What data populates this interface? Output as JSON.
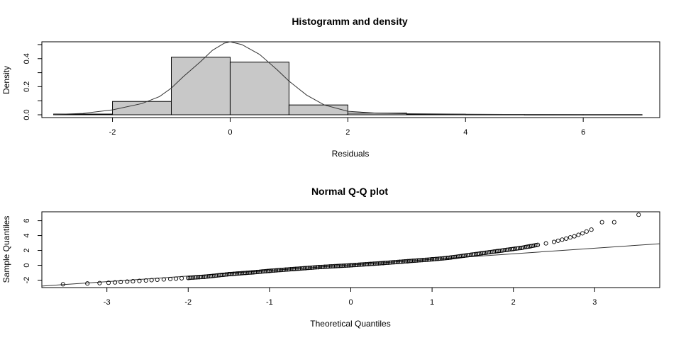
{
  "chart_data": [
    {
      "type": "bar",
      "subtype": "histogram with density curve",
      "title": "Histogramm and density",
      "xlabel": "Residuals",
      "ylabel": "Density",
      "xlim": [
        -3.2,
        7.3
      ],
      "ylim": [
        -0.02,
        0.52
      ],
      "x_ticks": [
        "-2",
        "0",
        "2",
        "4",
        "6"
      ],
      "y_ticks": [
        "0.0",
        "0.2",
        "0.4"
      ],
      "bins": [
        {
          "from": -3,
          "to": -2,
          "value": 0.005
        },
        {
          "from": -2,
          "to": -1,
          "value": 0.095
        },
        {
          "from": -1,
          "to": 0,
          "value": 0.41
        },
        {
          "from": 0,
          "to": 1,
          "value": 0.375
        },
        {
          "from": 1,
          "to": 2,
          "value": 0.07
        },
        {
          "from": 2,
          "to": 3,
          "value": 0.012
        },
        {
          "from": 3,
          "to": 4,
          "value": 0.004
        },
        {
          "from": 4,
          "to": 5,
          "value": 0.002
        },
        {
          "from": 5,
          "to": 6,
          "value": 0.001
        },
        {
          "from": 6,
          "to": 7,
          "value": 0.001
        }
      ],
      "density": {
        "x": [
          -3.0,
          -2.5,
          -2.0,
          -1.5,
          -1.2,
          -1.0,
          -0.8,
          -0.5,
          -0.3,
          -0.1,
          0.0,
          0.2,
          0.5,
          0.8,
          1.0,
          1.3,
          1.6,
          2.0,
          2.5,
          3.0,
          4.0,
          5.0,
          6.0,
          7.0
        ],
        "y": [
          0.002,
          0.01,
          0.035,
          0.08,
          0.13,
          0.19,
          0.27,
          0.38,
          0.46,
          0.51,
          0.52,
          0.5,
          0.43,
          0.32,
          0.24,
          0.14,
          0.07,
          0.025,
          0.012,
          0.008,
          0.004,
          0.002,
          0.001,
          0.001
        ]
      },
      "bar_fill": "#c8c8c8",
      "grid": false,
      "legend": "none"
    },
    {
      "type": "scatter",
      "subtype": "normal Q-Q plot",
      "title": "Normal Q-Q plot",
      "xlabel": "Theoretical Quantiles",
      "ylabel": "Sample Quantiles",
      "xlim": [
        -3.8,
        3.8
      ],
      "ylim": [
        -3.0,
        7.2
      ],
      "x_ticks": [
        "-3",
        "-2",
        "-1",
        "0",
        "1",
        "2",
        "3"
      ],
      "y_ticks": [
        "-2",
        "0",
        "2",
        "4",
        "6"
      ],
      "reference_line": {
        "intercept": 0.05,
        "slope": 0.75
      },
      "points_approx": {
        "x": [
          -3.54,
          -3.24,
          -3.09,
          -2.98,
          -2.9,
          -2.83,
          -2.75,
          -2.68,
          -2.6,
          -2.52,
          -2.45,
          -2.38,
          -2.3,
          -2.22,
          -2.15,
          -2.08,
          -2.0,
          -1.8,
          -1.5,
          -1.2,
          -1.0,
          -0.7,
          -0.4,
          0.0,
          0.4,
          0.7,
          1.0,
          1.2,
          1.4,
          1.6,
          1.8,
          2.0,
          2.1,
          2.2,
          2.3,
          2.4,
          2.5,
          2.55,
          2.6,
          2.65,
          2.7,
          2.75,
          2.8,
          2.85,
          2.9,
          2.96,
          3.09,
          3.24,
          3.54
        ],
        "y": [
          -2.55,
          -2.45,
          -2.4,
          -2.35,
          -2.3,
          -2.25,
          -2.2,
          -2.15,
          -2.1,
          -2.05,
          -2.0,
          -1.95,
          -1.9,
          -1.85,
          -1.8,
          -1.75,
          -1.7,
          -1.55,
          -1.2,
          -0.95,
          -0.75,
          -0.5,
          -0.25,
          0.0,
          0.3,
          0.55,
          0.8,
          1.0,
          1.3,
          1.6,
          1.9,
          2.2,
          2.35,
          2.55,
          2.75,
          2.95,
          3.15,
          3.3,
          3.45,
          3.6,
          3.75,
          3.9,
          4.1,
          4.3,
          4.55,
          4.8,
          5.8,
          5.8,
          6.8
        ]
      },
      "grid": false,
      "legend": "none"
    }
  ]
}
